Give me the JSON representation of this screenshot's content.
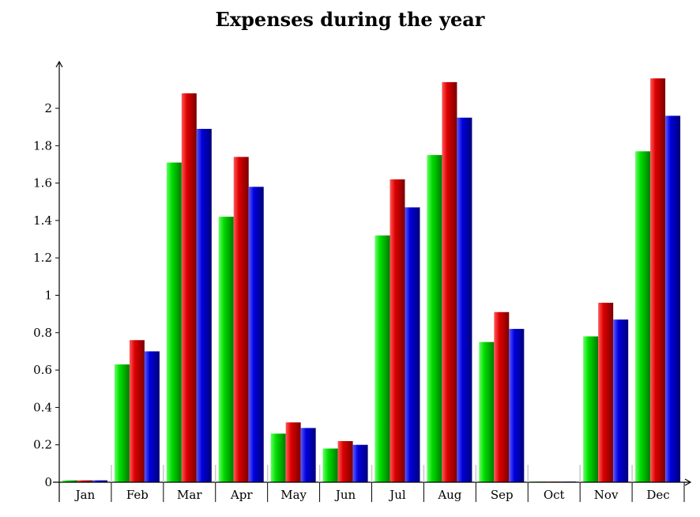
{
  "chart_data": {
    "type": "bar",
    "title": "Expenses during the year",
    "xlabel": "",
    "ylabel": "",
    "categories": [
      "Jan",
      "Feb",
      "Mar",
      "Apr",
      "May",
      "Jun",
      "Jul",
      "Aug",
      "Sep",
      "Oct",
      "Nov",
      "Dec"
    ],
    "series": [
      {
        "color": "#00cc00",
        "values": [
          0.01,
          0.63,
          1.71,
          1.42,
          0.26,
          0.18,
          1.32,
          1.75,
          0.75,
          0.0,
          0.78,
          1.77
        ]
      },
      {
        "color": "#cc0000",
        "values": [
          0.01,
          0.76,
          2.08,
          1.74,
          0.32,
          0.22,
          1.62,
          2.14,
          0.91,
          0.0,
          0.96,
          2.16
        ]
      },
      {
        "color": "#0000cc",
        "values": [
          0.01,
          0.7,
          1.89,
          1.58,
          0.29,
          0.2,
          1.47,
          1.95,
          0.82,
          0.0,
          0.87,
          1.96
        ]
      }
    ],
    "yticks": [
      "0",
      "0.2",
      "0.4",
      "0.6",
      "0.8",
      "1",
      "1.2",
      "1.4",
      "1.6",
      "1.8",
      "2"
    ],
    "ylim": [
      0,
      2.2
    ],
    "grid": false,
    "legend": "none"
  }
}
